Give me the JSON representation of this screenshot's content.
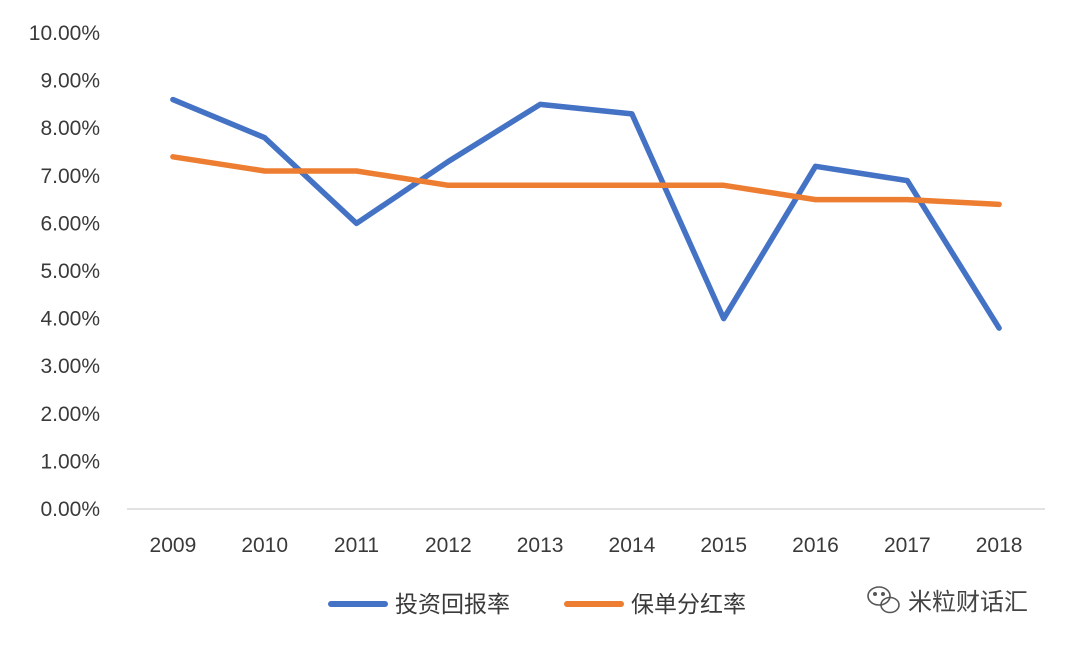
{
  "chart_data": {
    "type": "line",
    "categories": [
      "2009",
      "2010",
      "2011",
      "2012",
      "2013",
      "2014",
      "2015",
      "2016",
      "2017",
      "2018"
    ],
    "series": [
      {
        "name": "投资回报率",
        "color": "#4472c4",
        "values": [
          8.6,
          7.8,
          6.0,
          7.3,
          8.5,
          8.3,
          4.0,
          7.2,
          6.9,
          3.8
        ]
      },
      {
        "name": "保单分红率",
        "color": "#ed7d31",
        "values": [
          7.4,
          7.1,
          7.1,
          6.8,
          6.8,
          6.8,
          6.8,
          6.5,
          6.5,
          6.4
        ]
      }
    ],
    "yticks": [
      "0.00%",
      "1.00%",
      "2.00%",
      "3.00%",
      "4.00%",
      "5.00%",
      "6.00%",
      "7.00%",
      "8.00%",
      "9.00%",
      "10.00%"
    ],
    "ylim": [
      0,
      10
    ],
    "y_unit": "%",
    "grid": false,
    "legend_position": "bottom"
  },
  "watermark": {
    "text": "米粒财话汇",
    "icon": "wechat-icon"
  }
}
